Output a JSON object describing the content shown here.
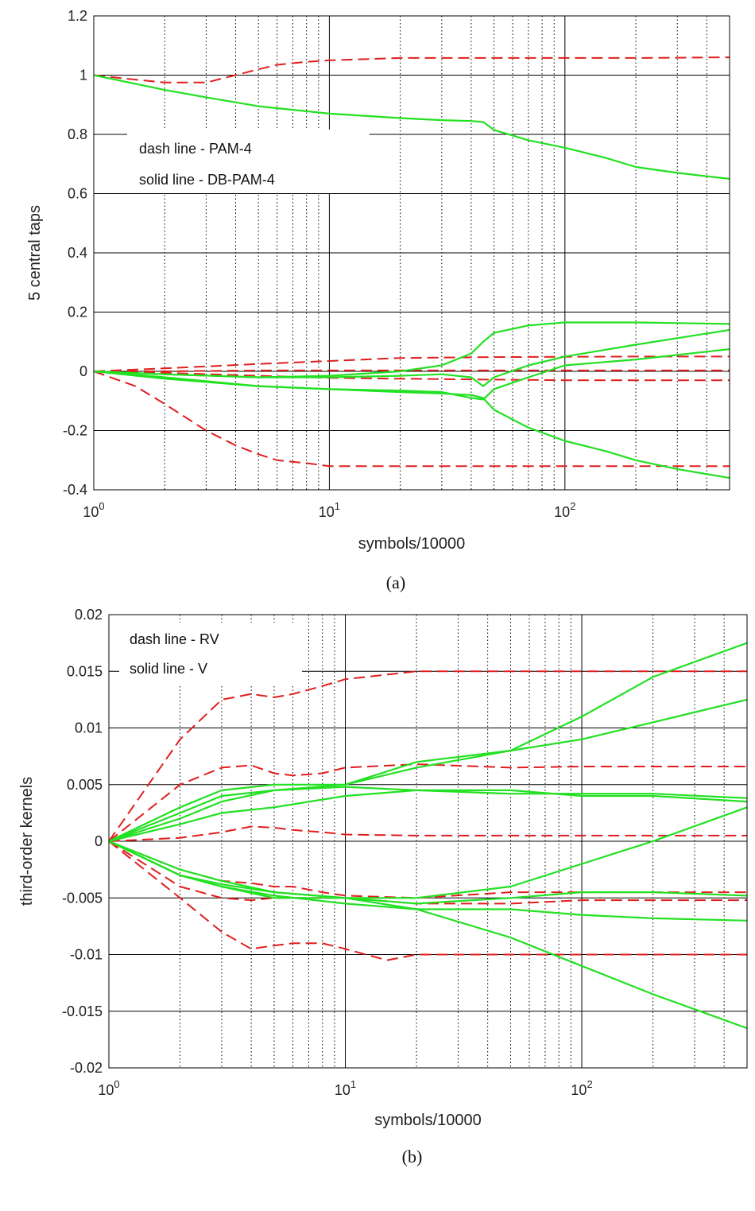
{
  "colors": {
    "dash": "#e01e1e",
    "solid": "#22e022",
    "grid_major": "#000000",
    "grid_minor": "#000000",
    "axes": "#000000"
  },
  "chart_data": [
    {
      "type": "line",
      "caption": "(a)",
      "xlabel": "symbols/10000",
      "ylabel": "5 central taps",
      "xscale": "log",
      "xlim": [
        1,
        500
      ],
      "ylim": [
        -0.4,
        1.2
      ],
      "xticks": [
        {
          "base": "10",
          "exp": "0",
          "value": 1
        },
        {
          "base": "10",
          "exp": "1",
          "value": 10
        },
        {
          "base": "10",
          "exp": "2",
          "value": 100
        }
      ],
      "yticks": [
        {
          "label": "1.2",
          "value": 1.2
        },
        {
          "label": "1",
          "value": 1.0
        },
        {
          "label": "0.8",
          "value": 0.8
        },
        {
          "label": "0.6",
          "value": 0.6
        },
        {
          "label": "0.4",
          "value": 0.4
        },
        {
          "label": "0.2",
          "value": 0.2
        },
        {
          "label": "0",
          "value": 0.0
        },
        {
          "label": "-0.2",
          "value": -0.2
        },
        {
          "label": "-0.4",
          "value": -0.4
        }
      ],
      "grid": true,
      "legend_position": "upper-left",
      "legend": [
        "dash line - PAM-4",
        "solid line - DB-PAM-4"
      ],
      "series": [
        {
          "style": "dash",
          "x": [
            1,
            1.5,
            2,
            3,
            4,
            5,
            6,
            8,
            10,
            20,
            50,
            100,
            200,
            500
          ],
          "y": [
            1.0,
            0.985,
            0.975,
            0.975,
            1.0,
            1.02,
            1.035,
            1.045,
            1.05,
            1.058,
            1.058,
            1.058,
            1.058,
            1.06
          ]
        },
        {
          "style": "dash",
          "x": [
            1,
            2,
            5,
            10,
            20,
            50,
            100,
            200,
            500
          ],
          "y": [
            0.0,
            0.01,
            0.025,
            0.035,
            0.045,
            0.048,
            0.049,
            0.05,
            0.05
          ]
        },
        {
          "style": "dash",
          "x": [
            1,
            2,
            5,
            10,
            20,
            50,
            100,
            200,
            500
          ],
          "y": [
            0.0,
            0.0,
            0.003,
            0.003,
            0.003,
            0.003,
            0.003,
            0.003,
            0.003
          ]
        },
        {
          "style": "dash",
          "x": [
            1,
            2,
            5,
            10,
            20,
            50,
            100,
            200,
            500
          ],
          "y": [
            0.0,
            -0.005,
            -0.015,
            -0.022,
            -0.025,
            -0.028,
            -0.03,
            -0.03,
            -0.03
          ]
        },
        {
          "style": "dash",
          "x": [
            1,
            1.5,
            2,
            3,
            4,
            5,
            6,
            8,
            10,
            15,
            20,
            50,
            100,
            200,
            500
          ],
          "y": [
            0.0,
            -0.05,
            -0.11,
            -0.2,
            -0.25,
            -0.28,
            -0.3,
            -0.31,
            -0.32,
            -0.32,
            -0.32,
            -0.32,
            -0.32,
            -0.32,
            -0.32
          ]
        },
        {
          "style": "solid",
          "x": [
            1,
            2,
            3,
            5,
            10,
            20,
            30,
            40,
            45,
            50,
            70,
            100,
            150,
            200,
            300,
            500
          ],
          "y": [
            1.0,
            0.95,
            0.925,
            0.895,
            0.87,
            0.855,
            0.848,
            0.845,
            0.842,
            0.815,
            0.78,
            0.755,
            0.72,
            0.69,
            0.67,
            0.65
          ]
        },
        {
          "style": "solid",
          "x": [
            1,
            2,
            5,
            10,
            20,
            30,
            40,
            45,
            50,
            70,
            100,
            200,
            500
          ],
          "y": [
            0.0,
            -0.01,
            -0.02,
            -0.015,
            0.0,
            0.02,
            0.06,
            0.1,
            0.13,
            0.155,
            0.165,
            0.165,
            0.16
          ]
        },
        {
          "style": "solid",
          "x": [
            1,
            2,
            5,
            10,
            20,
            30,
            40,
            45,
            50,
            70,
            100,
            200,
            500
          ],
          "y": [
            0.0,
            -0.01,
            -0.02,
            -0.02,
            -0.015,
            -0.01,
            -0.02,
            -0.05,
            -0.02,
            0.02,
            0.05,
            0.09,
            0.14
          ]
        },
        {
          "style": "solid",
          "x": [
            1,
            2,
            5,
            10,
            20,
            30,
            40,
            45,
            50,
            70,
            100,
            200,
            500
          ],
          "y": [
            0.0,
            -0.02,
            -0.05,
            -0.06,
            -0.065,
            -0.07,
            -0.09,
            -0.095,
            -0.06,
            -0.02,
            0.02,
            0.04,
            0.075
          ]
        },
        {
          "style": "solid",
          "x": [
            1,
            2,
            5,
            10,
            20,
            30,
            40,
            45,
            50,
            70,
            100,
            150,
            200,
            300,
            500
          ],
          "y": [
            0.0,
            -0.025,
            -0.05,
            -0.06,
            -0.07,
            -0.075,
            -0.08,
            -0.09,
            -0.13,
            -0.19,
            -0.235,
            -0.27,
            -0.3,
            -0.33,
            -0.36
          ]
        }
      ]
    },
    {
      "type": "line",
      "caption": "(b)",
      "xlabel": "symbols/10000",
      "ylabel": "third-order kernels",
      "xscale": "log",
      "xlim": [
        1,
        500
      ],
      "ylim": [
        -0.02,
        0.02
      ],
      "xticks": [
        {
          "base": "10",
          "exp": "0",
          "value": 1
        },
        {
          "base": "10",
          "exp": "1",
          "value": 10
        },
        {
          "base": "10",
          "exp": "2",
          "value": 100
        }
      ],
      "yticks": [
        {
          "label": "0.02",
          "value": 0.02
        },
        {
          "label": "0.015",
          "value": 0.015
        },
        {
          "label": "0.01",
          "value": 0.01
        },
        {
          "label": "0.005",
          "value": 0.005
        },
        {
          "label": "0",
          "value": 0.0
        },
        {
          "label": "-0.005",
          "value": -0.005
        },
        {
          "label": "-0.01",
          "value": -0.01
        },
        {
          "label": "-0.015",
          "value": -0.015
        },
        {
          "label": "-0.02",
          "value": -0.02
        }
      ],
      "grid": true,
      "legend_position": "upper-left",
      "legend": [
        "dash line - RV",
        "solid line - V"
      ],
      "series": [
        {
          "style": "dash",
          "x": [
            1,
            2,
            3,
            4,
            5,
            6,
            8,
            10,
            20,
            50,
            100,
            200,
            500
          ],
          "y": [
            0.0,
            0.009,
            0.0125,
            0.013,
            0.0127,
            0.013,
            0.0137,
            0.0143,
            0.015,
            0.015,
            0.015,
            0.015,
            0.015
          ]
        },
        {
          "style": "dash",
          "x": [
            1,
            2,
            3,
            4,
            5,
            6,
            8,
            10,
            20,
            50,
            100,
            200,
            500
          ],
          "y": [
            0.0,
            0.005,
            0.0065,
            0.0067,
            0.006,
            0.0058,
            0.006,
            0.0065,
            0.0068,
            0.0065,
            0.0066,
            0.0066,
            0.0066
          ]
        },
        {
          "style": "dash",
          "x": [
            1,
            2,
            3,
            4,
            5,
            6,
            8,
            10,
            20,
            50,
            100,
            200,
            500
          ],
          "y": [
            0.0,
            0.0003,
            0.0008,
            0.0013,
            0.0012,
            0.001,
            0.0008,
            0.0006,
            0.0005,
            0.0005,
            0.0005,
            0.0005,
            0.0005
          ]
        },
        {
          "style": "dash",
          "x": [
            1,
            2,
            3,
            4,
            5,
            6,
            8,
            10,
            20,
            50,
            100,
            200,
            500
          ],
          "y": [
            0.0,
            -0.0025,
            -0.0035,
            -0.0037,
            -0.004,
            -0.004,
            -0.0045,
            -0.0048,
            -0.005,
            -0.0045,
            -0.0045,
            -0.0045,
            -0.0045
          ]
        },
        {
          "style": "dash",
          "x": [
            1,
            2,
            3,
            4,
            5,
            6,
            8,
            10,
            20,
            50,
            100,
            200,
            500
          ],
          "y": [
            0.0,
            -0.004,
            -0.005,
            -0.0052,
            -0.005,
            -0.005,
            -0.005,
            -0.005,
            -0.0055,
            -0.0055,
            -0.0052,
            -0.0052,
            -0.0052
          ]
        },
        {
          "style": "dash",
          "x": [
            1,
            2,
            3,
            4,
            5,
            6,
            8,
            10,
            15,
            20,
            50,
            100,
            200,
            500
          ],
          "y": [
            0.0,
            -0.005,
            -0.008,
            -0.0095,
            -0.0092,
            -0.009,
            -0.009,
            -0.0095,
            -0.0105,
            -0.01,
            -0.01,
            -0.01,
            -0.01,
            -0.01
          ]
        },
        {
          "style": "solid",
          "x": [
            1,
            2,
            3,
            5,
            10,
            20,
            50,
            100,
            200,
            500
          ],
          "y": [
            0.0,
            0.003,
            0.0045,
            0.005,
            0.005,
            0.007,
            0.008,
            0.011,
            0.0145,
            0.0175
          ]
        },
        {
          "style": "solid",
          "x": [
            1,
            2,
            3,
            5,
            10,
            20,
            50,
            100,
            200,
            500
          ],
          "y": [
            0.0,
            0.0025,
            0.004,
            0.0045,
            0.005,
            0.0065,
            0.008,
            0.009,
            0.0105,
            0.0125
          ]
        },
        {
          "style": "solid",
          "x": [
            1,
            2,
            3,
            5,
            10,
            20,
            50,
            100,
            200,
            500
          ],
          "y": [
            0.0,
            0.002,
            0.0035,
            0.0045,
            0.0048,
            0.0045,
            0.0042,
            0.0042,
            0.0042,
            0.0038
          ]
        },
        {
          "style": "solid",
          "x": [
            1,
            2,
            3,
            5,
            10,
            20,
            50,
            100,
            200,
            500
          ],
          "y": [
            0.0,
            0.0015,
            0.0025,
            0.003,
            0.004,
            0.0045,
            0.0045,
            0.004,
            0.004,
            0.0035
          ]
        },
        {
          "style": "solid",
          "x": [
            1,
            2,
            3,
            5,
            10,
            20,
            50,
            100,
            200,
            500
          ],
          "y": [
            0.0,
            -0.0025,
            -0.0035,
            -0.0045,
            -0.005,
            -0.005,
            -0.004,
            -0.002,
            0.0,
            0.003
          ]
        },
        {
          "style": "solid",
          "x": [
            1,
            2,
            3,
            5,
            10,
            20,
            50,
            100,
            200,
            500
          ],
          "y": [
            0.0,
            -0.003,
            -0.004,
            -0.005,
            -0.005,
            -0.0055,
            -0.005,
            -0.0045,
            -0.0045,
            -0.0048
          ]
        },
        {
          "style": "solid",
          "x": [
            1,
            2,
            3,
            5,
            10,
            20,
            50,
            100,
            200,
            500
          ],
          "y": [
            0.0,
            -0.003,
            -0.004,
            -0.0048,
            -0.0055,
            -0.006,
            -0.006,
            -0.0065,
            -0.0068,
            -0.007
          ]
        },
        {
          "style": "solid",
          "x": [
            1,
            2,
            3,
            5,
            10,
            20,
            50,
            100,
            200,
            500
          ],
          "y": [
            0.0,
            -0.003,
            -0.0038,
            -0.0045,
            -0.005,
            -0.006,
            -0.0085,
            -0.011,
            -0.0135,
            -0.0165
          ]
        }
      ]
    }
  ]
}
